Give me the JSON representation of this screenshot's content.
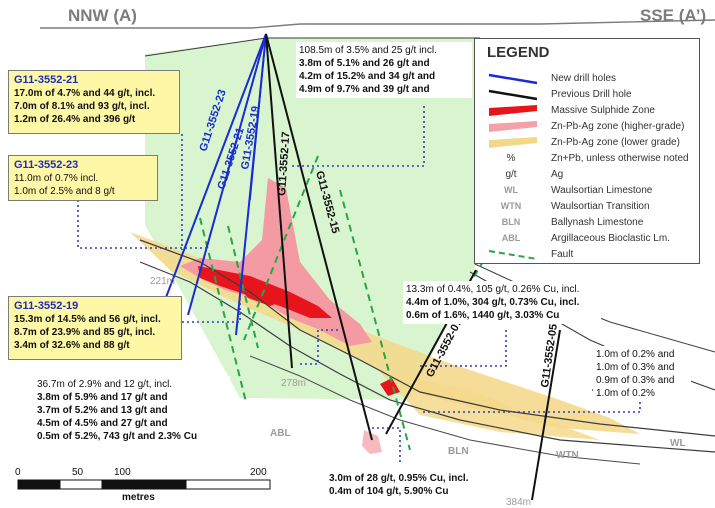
{
  "section": {
    "left_label": "NNW (A)",
    "right_label": "SSE (A’)"
  },
  "drill_labels": {
    "h21": "G11-3552-21",
    "h23": "G11-3552-23",
    "h19": "G11-3552-19",
    "h17": "G11-3552-17",
    "h15": "G11-3552-15",
    "h07": "G11-3552-07",
    "h05": "G11-3552-05"
  },
  "depths": {
    "d221": "221m",
    "d278": "278m",
    "d384": "384m"
  },
  "units": {
    "abl": "ABL",
    "bln": "BLN",
    "wtn": "WTN",
    "wl": "WL"
  },
  "boxes": {
    "b21": {
      "title": "G11-3552-21",
      "lines": [
        "17.0m of 4.7% and 44 g/t, incl.",
        "7.0m of 8.1% and 93 g/t, incl.",
        "1.2m of 26.4% and 396 g/t"
      ]
    },
    "b23": {
      "title": "G11-3552-23",
      "lines": [
        "11.0m of 0.7% incl.",
        "1.0m of 2.5% and 8 g/t"
      ]
    },
    "b19": {
      "title": "G11-3552-19",
      "lines": [
        "15.3m of 14.5% and 56 g/t, incl.",
        "8.7m of 23.9% and 85 g/t, incl.",
        "3.4m of 32.6% and 88 g/t"
      ]
    }
  },
  "notes": {
    "top": [
      "108.5m of 3.5% and 25 g/t incl.",
      "3.8m of 5.1% and 26 g/t and",
      "4.2m of 15.2% and 34 g/t and",
      "4.9m of 9.7% and 39 g/t and"
    ],
    "left": [
      "36.7m of 2.9% and 12 g/t, incl.",
      "3.8m of 5.9% and 17 g/t and",
      "3.7m of 5.2% and 13 g/t and",
      "4.5m of 4.5% and 27 g/t and",
      "0.5m of 5.2%, 743 g/t and 2.3% Cu"
    ],
    "mid": [
      "13.3m of 0.4%, 105 g/t, 0.26% Cu, incl.",
      "4.4m of 1.0%, 304 g/t, 0.73% Cu, incl.",
      "0.6m of 1.6%, 1440 g/t, 3.03% Cu"
    ],
    "right": [
      "1.0m of 0.2% and",
      "1.0m of 0.3% and",
      "0.9m of 0.3% and",
      "1.0m of 0.2%"
    ],
    "bottom": [
      "3.0m of 28 g/t, 0.95% Cu, incl.",
      "0.4m of 104 g/t, 5.90% Cu"
    ]
  },
  "legend": {
    "title": "LEGEND",
    "items": [
      {
        "label": "New drill holes",
        "color": "#1a2bd1"
      },
      {
        "label": "Previous Drill hole",
        "color": "#111111"
      },
      {
        "label": "Massive Sulphide Zone",
        "color": "#e8141c"
      },
      {
        "label": "Zn-Pb-Ag zone (higher-grade)",
        "color": "#f4a0a8"
      },
      {
        "label": "Zn-Pb-Ag zone (lower grade)",
        "color": "#f2d98a"
      },
      {
        "abbr": "%",
        "label": "Zn+Pb, unless otherwise noted"
      },
      {
        "abbr": "g/t",
        "label": "Ag"
      },
      {
        "abbr": "WL",
        "label": "Waulsortian Limestone"
      },
      {
        "abbr": "WTN",
        "label": "Waulsortian Transition"
      },
      {
        "abbr": "BLN",
        "label": "Ballynash Limestone"
      },
      {
        "abbr": "ABL",
        "label": "Argillaceous Bioclastic Lm."
      },
      {
        "label": "Fault",
        "color": "#2aa34a"
      }
    ]
  },
  "scale": {
    "ticks": [
      "0",
      "50",
      "100",
      "200"
    ],
    "unit": "metres"
  },
  "colors": {
    "zone_green": "#d8f5cf",
    "new_hole": "#1a2bd1",
    "old_hole": "#111111",
    "fault": "#2aa34a",
    "callout": "#1f2fb5"
  }
}
